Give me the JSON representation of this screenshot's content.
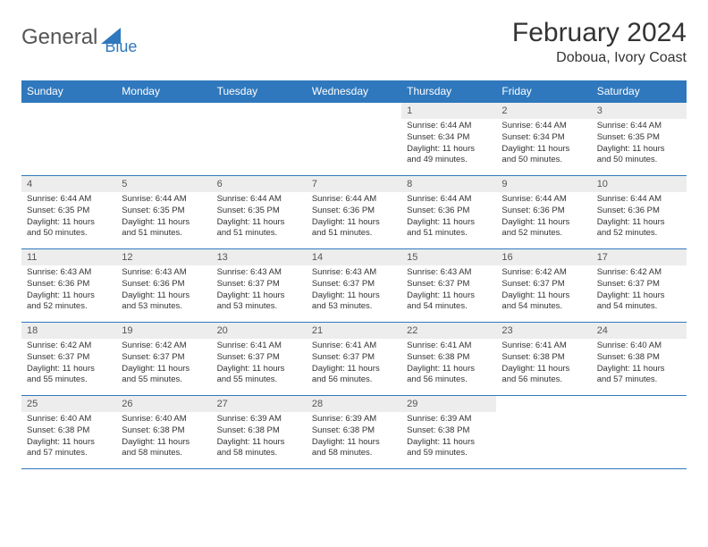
{
  "logo": {
    "text1": "General",
    "text2": "Blue"
  },
  "title": "February 2024",
  "location": "Doboua, Ivory Coast",
  "colors": {
    "headerBg": "#2f78bd",
    "headerText": "#ffffff",
    "dayBg": "#ededed",
    "border": "#2f78bd"
  },
  "weekdays": [
    "Sunday",
    "Monday",
    "Tuesday",
    "Wednesday",
    "Thursday",
    "Friday",
    "Saturday"
  ],
  "weeks": [
    [
      {
        "num": "",
        "sunrise": "",
        "sunset": "",
        "daylight": ""
      },
      {
        "num": "",
        "sunrise": "",
        "sunset": "",
        "daylight": ""
      },
      {
        "num": "",
        "sunrise": "",
        "sunset": "",
        "daylight": ""
      },
      {
        "num": "",
        "sunrise": "",
        "sunset": "",
        "daylight": ""
      },
      {
        "num": "1",
        "sunrise": "Sunrise: 6:44 AM",
        "sunset": "Sunset: 6:34 PM",
        "daylight": "Daylight: 11 hours and 49 minutes."
      },
      {
        "num": "2",
        "sunrise": "Sunrise: 6:44 AM",
        "sunset": "Sunset: 6:34 PM",
        "daylight": "Daylight: 11 hours and 50 minutes."
      },
      {
        "num": "3",
        "sunrise": "Sunrise: 6:44 AM",
        "sunset": "Sunset: 6:35 PM",
        "daylight": "Daylight: 11 hours and 50 minutes."
      }
    ],
    [
      {
        "num": "4",
        "sunrise": "Sunrise: 6:44 AM",
        "sunset": "Sunset: 6:35 PM",
        "daylight": "Daylight: 11 hours and 50 minutes."
      },
      {
        "num": "5",
        "sunrise": "Sunrise: 6:44 AM",
        "sunset": "Sunset: 6:35 PM",
        "daylight": "Daylight: 11 hours and 51 minutes."
      },
      {
        "num": "6",
        "sunrise": "Sunrise: 6:44 AM",
        "sunset": "Sunset: 6:35 PM",
        "daylight": "Daylight: 11 hours and 51 minutes."
      },
      {
        "num": "7",
        "sunrise": "Sunrise: 6:44 AM",
        "sunset": "Sunset: 6:36 PM",
        "daylight": "Daylight: 11 hours and 51 minutes."
      },
      {
        "num": "8",
        "sunrise": "Sunrise: 6:44 AM",
        "sunset": "Sunset: 6:36 PM",
        "daylight": "Daylight: 11 hours and 51 minutes."
      },
      {
        "num": "9",
        "sunrise": "Sunrise: 6:44 AM",
        "sunset": "Sunset: 6:36 PM",
        "daylight": "Daylight: 11 hours and 52 minutes."
      },
      {
        "num": "10",
        "sunrise": "Sunrise: 6:44 AM",
        "sunset": "Sunset: 6:36 PM",
        "daylight": "Daylight: 11 hours and 52 minutes."
      }
    ],
    [
      {
        "num": "11",
        "sunrise": "Sunrise: 6:43 AM",
        "sunset": "Sunset: 6:36 PM",
        "daylight": "Daylight: 11 hours and 52 minutes."
      },
      {
        "num": "12",
        "sunrise": "Sunrise: 6:43 AM",
        "sunset": "Sunset: 6:36 PM",
        "daylight": "Daylight: 11 hours and 53 minutes."
      },
      {
        "num": "13",
        "sunrise": "Sunrise: 6:43 AM",
        "sunset": "Sunset: 6:37 PM",
        "daylight": "Daylight: 11 hours and 53 minutes."
      },
      {
        "num": "14",
        "sunrise": "Sunrise: 6:43 AM",
        "sunset": "Sunset: 6:37 PM",
        "daylight": "Daylight: 11 hours and 53 minutes."
      },
      {
        "num": "15",
        "sunrise": "Sunrise: 6:43 AM",
        "sunset": "Sunset: 6:37 PM",
        "daylight": "Daylight: 11 hours and 54 minutes."
      },
      {
        "num": "16",
        "sunrise": "Sunrise: 6:42 AM",
        "sunset": "Sunset: 6:37 PM",
        "daylight": "Daylight: 11 hours and 54 minutes."
      },
      {
        "num": "17",
        "sunrise": "Sunrise: 6:42 AM",
        "sunset": "Sunset: 6:37 PM",
        "daylight": "Daylight: 11 hours and 54 minutes."
      }
    ],
    [
      {
        "num": "18",
        "sunrise": "Sunrise: 6:42 AM",
        "sunset": "Sunset: 6:37 PM",
        "daylight": "Daylight: 11 hours and 55 minutes."
      },
      {
        "num": "19",
        "sunrise": "Sunrise: 6:42 AM",
        "sunset": "Sunset: 6:37 PM",
        "daylight": "Daylight: 11 hours and 55 minutes."
      },
      {
        "num": "20",
        "sunrise": "Sunrise: 6:41 AM",
        "sunset": "Sunset: 6:37 PM",
        "daylight": "Daylight: 11 hours and 55 minutes."
      },
      {
        "num": "21",
        "sunrise": "Sunrise: 6:41 AM",
        "sunset": "Sunset: 6:37 PM",
        "daylight": "Daylight: 11 hours and 56 minutes."
      },
      {
        "num": "22",
        "sunrise": "Sunrise: 6:41 AM",
        "sunset": "Sunset: 6:38 PM",
        "daylight": "Daylight: 11 hours and 56 minutes."
      },
      {
        "num": "23",
        "sunrise": "Sunrise: 6:41 AM",
        "sunset": "Sunset: 6:38 PM",
        "daylight": "Daylight: 11 hours and 56 minutes."
      },
      {
        "num": "24",
        "sunrise": "Sunrise: 6:40 AM",
        "sunset": "Sunset: 6:38 PM",
        "daylight": "Daylight: 11 hours and 57 minutes."
      }
    ],
    [
      {
        "num": "25",
        "sunrise": "Sunrise: 6:40 AM",
        "sunset": "Sunset: 6:38 PM",
        "daylight": "Daylight: 11 hours and 57 minutes."
      },
      {
        "num": "26",
        "sunrise": "Sunrise: 6:40 AM",
        "sunset": "Sunset: 6:38 PM",
        "daylight": "Daylight: 11 hours and 58 minutes."
      },
      {
        "num": "27",
        "sunrise": "Sunrise: 6:39 AM",
        "sunset": "Sunset: 6:38 PM",
        "daylight": "Daylight: 11 hours and 58 minutes."
      },
      {
        "num": "28",
        "sunrise": "Sunrise: 6:39 AM",
        "sunset": "Sunset: 6:38 PM",
        "daylight": "Daylight: 11 hours and 58 minutes."
      },
      {
        "num": "29",
        "sunrise": "Sunrise: 6:39 AM",
        "sunset": "Sunset: 6:38 PM",
        "daylight": "Daylight: 11 hours and 59 minutes."
      },
      {
        "num": "",
        "sunrise": "",
        "sunset": "",
        "daylight": ""
      },
      {
        "num": "",
        "sunrise": "",
        "sunset": "",
        "daylight": ""
      }
    ]
  ]
}
